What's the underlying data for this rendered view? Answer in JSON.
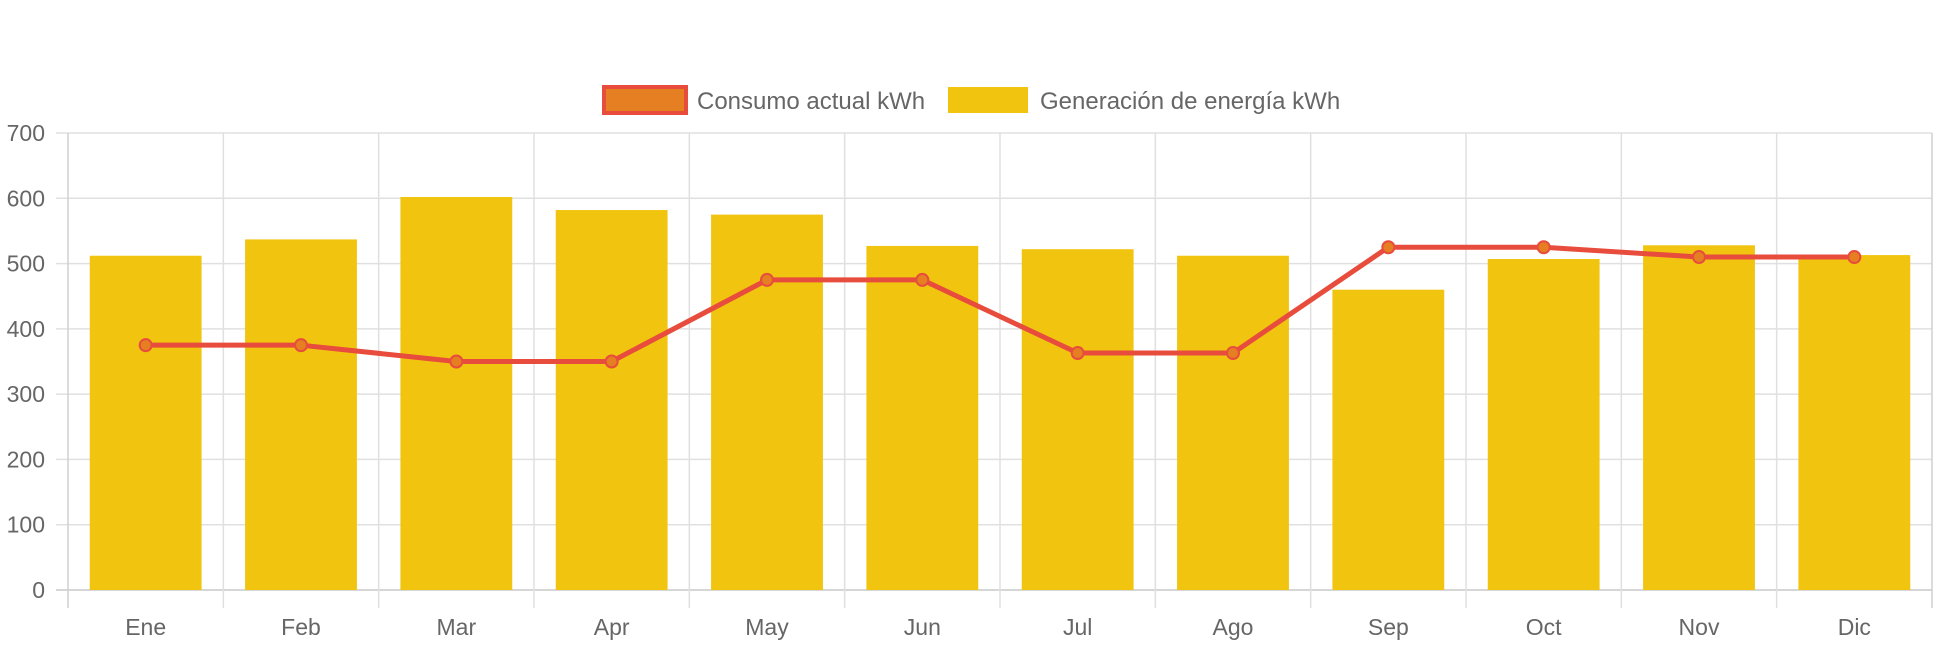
{
  "chart_data": {
    "type": "bar",
    "categories": [
      "Ene",
      "Feb",
      "Mar",
      "Apr",
      "May",
      "Jun",
      "Jul",
      "Ago",
      "Sep",
      "Oct",
      "Nov",
      "Dic"
    ],
    "series": [
      {
        "name": "Consumo actual kWh",
        "type": "line",
        "color": "#e74c3c",
        "point_color": "#e67e22",
        "values": [
          375,
          375,
          350,
          350,
          475,
          475,
          363,
          363,
          525,
          525,
          510,
          510
        ]
      },
      {
        "name": "Generación de energía kWh",
        "type": "bar",
        "color": "#f1c40f",
        "values": [
          512,
          537,
          602,
          582,
          575,
          527,
          522,
          512,
          460,
          507,
          528,
          513
        ]
      }
    ],
    "ylim": [
      0,
      700
    ],
    "yticks": [
      0,
      100,
      200,
      300,
      400,
      500,
      600,
      700
    ],
    "grid": true,
    "legend_position": "top-center",
    "title": "",
    "xlabel": "",
    "ylabel": ""
  }
}
